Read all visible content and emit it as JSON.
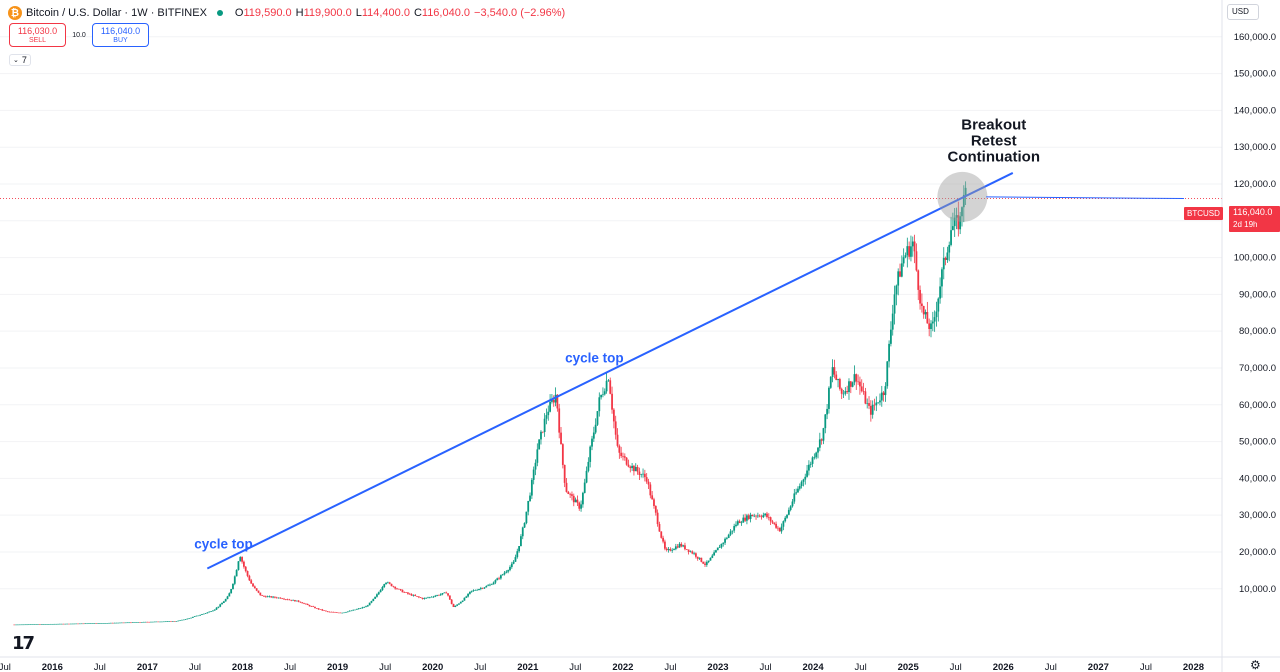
{
  "header": {
    "coin_glyph": "₿",
    "symbol": "Bitcoin / U.S. Dollar · 1W · BITFINEX",
    "o_label": "O",
    "o_value": "119,590.0",
    "h_label": "H",
    "h_value": "119,900.0",
    "l_label": "L",
    "l_value": "114,400.0",
    "c_label": "C",
    "c_value": "116,040.0",
    "change": "−3,540.0 (−2.96%)"
  },
  "trade": {
    "sell_price": "116,030.0",
    "sell_label": "SELL",
    "spread": "10.0",
    "buy_price": "116,040.0",
    "buy_label": "BUY"
  },
  "indicator": {
    "chevron": "⌄",
    "count": "7"
  },
  "currency": "USD",
  "price_tag": {
    "symbol": "BTCUSD",
    "price": "116,040.0",
    "countdown": "2d 19h"
  },
  "logo": "17",
  "settings_icon": "gear-icon",
  "colors": {
    "up": "#089981",
    "down": "#f23645",
    "trendline": "#2962ff",
    "annotation": "#2962ff"
  },
  "chart_data": {
    "type": "candlestick",
    "interval": "1W",
    "y_tick_labels": [
      "10,000.0",
      "20,000.0",
      "30,000.0",
      "40,000.0",
      "50,000.0",
      "60,000.0",
      "70,000.0",
      "80,000.0",
      "90,000.0",
      "100,000.0",
      "110,000.0",
      "120,000.0",
      "130,000.0",
      "140,000.0",
      "150,000.0",
      "160,000.0"
    ],
    "y_tick_values": [
      10000,
      20000,
      30000,
      40000,
      50000,
      60000,
      70000,
      80000,
      90000,
      100000,
      110000,
      120000,
      130000,
      140000,
      150000,
      160000
    ],
    "ylim": [
      -8000,
      170000
    ],
    "x_tick_labels": [
      "Jul",
      "2016",
      "Jul",
      "2017",
      "Jul",
      "2018",
      "Jul",
      "2019",
      "Jul",
      "2020",
      "Jul",
      "2021",
      "Jul",
      "2022",
      "Jul",
      "2023",
      "Jul",
      "2024",
      "Jul",
      "2025",
      "Jul",
      "2026",
      "Jul",
      "2027",
      "Jul",
      "2028"
    ],
    "x_tick_values": [
      2015.5,
      2016.0,
      2016.5,
      2017.0,
      2017.5,
      2018.0,
      2018.5,
      2019.0,
      2019.5,
      2020.0,
      2020.5,
      2021.0,
      2021.5,
      2022.0,
      2022.5,
      2023.0,
      2023.5,
      2024.0,
      2024.5,
      2025.0,
      2025.5,
      2026.0,
      2026.5,
      2027.0,
      2027.5,
      2028.0
    ],
    "x_bold": [
      "2016",
      "2017",
      "2018",
      "2019",
      "2020",
      "2021",
      "2022",
      "2023",
      "2024",
      "2025",
      "2026",
      "2027",
      "2028"
    ],
    "xlim": [
      2015.45,
      2028.3
    ],
    "price_trajectory": [
      [
        2015.6,
        260
      ],
      [
        2016.0,
        430
      ],
      [
        2016.5,
        650
      ],
      [
        2017.0,
        1000
      ],
      [
        2017.3,
        1200
      ],
      [
        2017.5,
        2500
      ],
      [
        2017.7,
        4300
      ],
      [
        2017.85,
        8000
      ],
      [
        2017.97,
        19500
      ],
      [
        2018.1,
        11000
      ],
      [
        2018.2,
        8000
      ],
      [
        2018.4,
        7500
      ],
      [
        2018.6,
        6500
      ],
      [
        2018.9,
        3700
      ],
      [
        2019.05,
        3500
      ],
      [
        2019.3,
        5200
      ],
      [
        2019.5,
        12000
      ],
      [
        2019.7,
        9000
      ],
      [
        2019.9,
        7300
      ],
      [
        2020.15,
        9000
      ],
      [
        2020.22,
        5000
      ],
      [
        2020.4,
        9300
      ],
      [
        2020.6,
        11000
      ],
      [
        2020.85,
        17000
      ],
      [
        2021.0,
        33000
      ],
      [
        2021.1,
        48000
      ],
      [
        2021.2,
        58000
      ],
      [
        2021.3,
        63000
      ],
      [
        2021.4,
        37000
      ],
      [
        2021.55,
        32000
      ],
      [
        2021.65,
        47000
      ],
      [
        2021.75,
        61000
      ],
      [
        2021.85,
        68000
      ],
      [
        2021.95,
        47000
      ],
      [
        2022.1,
        43000
      ],
      [
        2022.25,
        40000
      ],
      [
        2022.35,
        30000
      ],
      [
        2022.45,
        20000
      ],
      [
        2022.6,
        22000
      ],
      [
        2022.75,
        19500
      ],
      [
        2022.87,
        16500
      ],
      [
        2023.0,
        21000
      ],
      [
        2023.2,
        28000
      ],
      [
        2023.35,
        30000
      ],
      [
        2023.5,
        30000
      ],
      [
        2023.65,
        26000
      ],
      [
        2023.8,
        35000
      ],
      [
        2023.95,
        43000
      ],
      [
        2024.1,
        52000
      ],
      [
        2024.2,
        70000
      ],
      [
        2024.3,
        63000
      ],
      [
        2024.45,
        68000
      ],
      [
        2024.6,
        58000
      ],
      [
        2024.75,
        64000
      ],
      [
        2024.85,
        90000
      ],
      [
        2024.95,
        100000
      ],
      [
        2025.05,
        104000
      ],
      [
        2025.15,
        85000
      ],
      [
        2025.25,
        80000
      ],
      [
        2025.35,
        95000
      ],
      [
        2025.45,
        108000
      ],
      [
        2025.55,
        110000
      ],
      [
        2025.58,
        119000
      ],
      [
        2025.62,
        116040
      ]
    ],
    "trendline": {
      "from": [
        2017.63,
        15500
      ],
      "to": [
        2026.1,
        123000
      ]
    },
    "last_price_line": 116040,
    "annotations": [
      {
        "text": "cycle top",
        "x": 2017.8,
        "y": 21000
      },
      {
        "text": "cycle top",
        "x": 2021.7,
        "y": 71500
      }
    ],
    "note_lines": [
      "Breakout",
      "Retest",
      "Continuation"
    ],
    "note_anchor": [
      2025.9,
      124000
    ],
    "retest_circle": [
      2025.57,
      116500
    ],
    "arrow": {
      "from": [
        2025.82,
        116500
      ],
      "to": [
        2027.9,
        116040
      ]
    }
  }
}
